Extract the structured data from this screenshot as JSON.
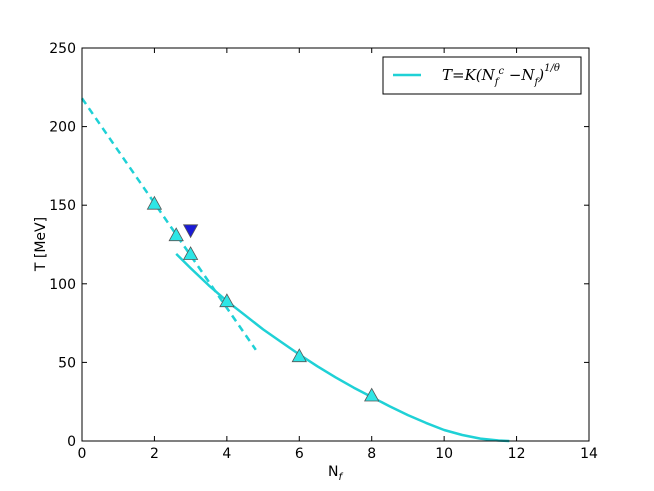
{
  "chart_data": {
    "type": "scatter",
    "xlabel": "N",
    "xlabel_sub": "f",
    "ylabel": "T [MeV]",
    "xlim": [
      0,
      14
    ],
    "ylim": [
      0,
      250
    ],
    "xticks": [
      0,
      2,
      4,
      6,
      8,
      10,
      12,
      14
    ],
    "yticks": [
      0,
      50,
      100,
      150,
      200,
      250
    ],
    "grid": false,
    "legend": {
      "position": "top-right",
      "entries": [
        {
          "label": "T=K(N_f^c − N_f)^{1/θ}",
          "series": "fit"
        }
      ]
    },
    "colors": {
      "curve": "#1fd1d6",
      "triangle_up_fill": "#2ee6e6",
      "triangle_down_fill": "#1a1ad6",
      "marker_edge": "#555555"
    },
    "series": [
      {
        "key": "fit",
        "kind": "line",
        "style": "solid",
        "x": [
          2.6,
          3.0,
          3.5,
          4.0,
          4.5,
          5.0,
          5.5,
          6.0,
          6.5,
          7.0,
          7.5,
          8.0,
          8.5,
          9.0,
          9.5,
          10.0,
          10.5,
          11.0,
          11.5,
          11.8
        ],
        "y": [
          119,
          110,
          99,
          89,
          80,
          71,
          63,
          55,
          47.5,
          40.5,
          34,
          28,
          22,
          16.5,
          11.5,
          7,
          3.8,
          1.5,
          0.3,
          0
        ]
      },
      {
        "key": "linear",
        "kind": "line",
        "style": "dashed",
        "x": [
          0,
          4.8
        ],
        "y": [
          218,
          58
        ]
      },
      {
        "key": "triangles_up",
        "kind": "marker",
        "marker": "triangle-up",
        "x": [
          2,
          2.6,
          3,
          4,
          6,
          8
        ],
        "y": [
          151,
          131,
          119,
          89,
          54,
          29
        ]
      },
      {
        "key": "triangles_down",
        "kind": "marker",
        "marker": "triangle-down",
        "x": [
          3
        ],
        "y": [
          134
        ]
      }
    ]
  }
}
